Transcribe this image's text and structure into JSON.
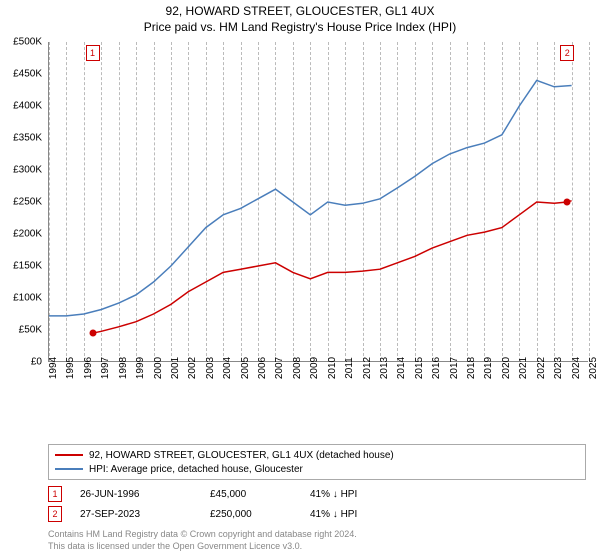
{
  "title1": "92, HOWARD STREET, GLOUCESTER, GL1 4UX",
  "title2": "Price paid vs. HM Land Registry's House Price Index (HPI)",
  "chart": {
    "type": "line",
    "background_color": "#ffffff",
    "grid_color": "#bbbbbb",
    "axis_color": "#888888",
    "title_fontsize": 12,
    "tick_fontsize": 10,
    "ylim": [
      0,
      500000
    ],
    "ytick_step": 50000,
    "ytick_labels": [
      "£0",
      "£50K",
      "£100K",
      "£150K",
      "£200K",
      "£250K",
      "£300K",
      "£350K",
      "£400K",
      "£450K",
      "£500K"
    ],
    "xlim": [
      1994,
      2025
    ],
    "xtick_step": 1,
    "xtick_labels": [
      "1994",
      "1995",
      "1996",
      "1997",
      "1998",
      "1999",
      "2000",
      "2001",
      "2002",
      "2003",
      "2004",
      "2005",
      "2006",
      "2007",
      "2008",
      "2009",
      "2010",
      "2011",
      "2012",
      "2013",
      "2014",
      "2015",
      "2016",
      "2017",
      "2018",
      "2019",
      "2020",
      "2021",
      "2022",
      "2023",
      "2024",
      "2025"
    ],
    "series": [
      {
        "name": "property",
        "label": "92, HOWARD STREET, GLOUCESTER, GL1 4UX (detached house)",
        "color": "#cc0000",
        "line_width": 1.5,
        "x": [
          1996.5,
          1997,
          1998,
          1999,
          2000,
          2001,
          2002,
          2003,
          2004,
          2005,
          2006,
          2007,
          2008,
          2009,
          2010,
          2011,
          2012,
          2013,
          2014,
          2015,
          2016,
          2017,
          2018,
          2019,
          2020,
          2021,
          2022,
          2023,
          2023.75,
          2024
        ],
        "y": [
          45000,
          48000,
          55000,
          63000,
          75000,
          90000,
          110000,
          125000,
          140000,
          145000,
          150000,
          155000,
          140000,
          130000,
          140000,
          140000,
          142000,
          145000,
          155000,
          165000,
          178000,
          188000,
          198000,
          203000,
          210000,
          230000,
          250000,
          248000,
          250000,
          252000
        ]
      },
      {
        "name": "hpi",
        "label": "HPI: Average price, detached house, Gloucester",
        "color": "#4a7ebb",
        "line_width": 1.5,
        "x": [
          1994,
          1995,
          1996,
          1997,
          1998,
          1999,
          2000,
          2001,
          2002,
          2003,
          2004,
          2005,
          2006,
          2007,
          2008,
          2009,
          2010,
          2011,
          2012,
          2013,
          2014,
          2015,
          2016,
          2017,
          2018,
          2019,
          2020,
          2021,
          2022,
          2023,
          2024
        ],
        "y": [
          72000,
          72000,
          75000,
          82000,
          92000,
          105000,
          125000,
          150000,
          180000,
          210000,
          230000,
          240000,
          255000,
          270000,
          250000,
          230000,
          250000,
          245000,
          248000,
          255000,
          272000,
          290000,
          310000,
          325000,
          335000,
          342000,
          355000,
          400000,
          440000,
          430000,
          432000
        ]
      }
    ],
    "markers": [
      {
        "id": "1",
        "x": 1996.5,
        "y": 45000,
        "color": "#cc0000",
        "box_color": "#cc0000",
        "box_y_offset_top": true
      },
      {
        "id": "2",
        "x": 2023.75,
        "y": 250000,
        "color": "#cc0000",
        "box_color": "#cc0000",
        "box_y_offset_top": true
      }
    ]
  },
  "legend": {
    "border_color": "#aaaaaa",
    "fontsize": 10
  },
  "data_rows": [
    {
      "num": "1",
      "num_color": "#cc0000",
      "date": "26-JUN-1996",
      "price": "£45,000",
      "pct": "41% ↓ HPI"
    },
    {
      "num": "2",
      "num_color": "#cc0000",
      "date": "27-SEP-2023",
      "price": "£250,000",
      "pct": "41% ↓ HPI"
    }
  ],
  "footer1": "Contains HM Land Registry data © Crown copyright and database right 2024.",
  "footer2": "This data is licensed under the Open Government Licence v3.0."
}
